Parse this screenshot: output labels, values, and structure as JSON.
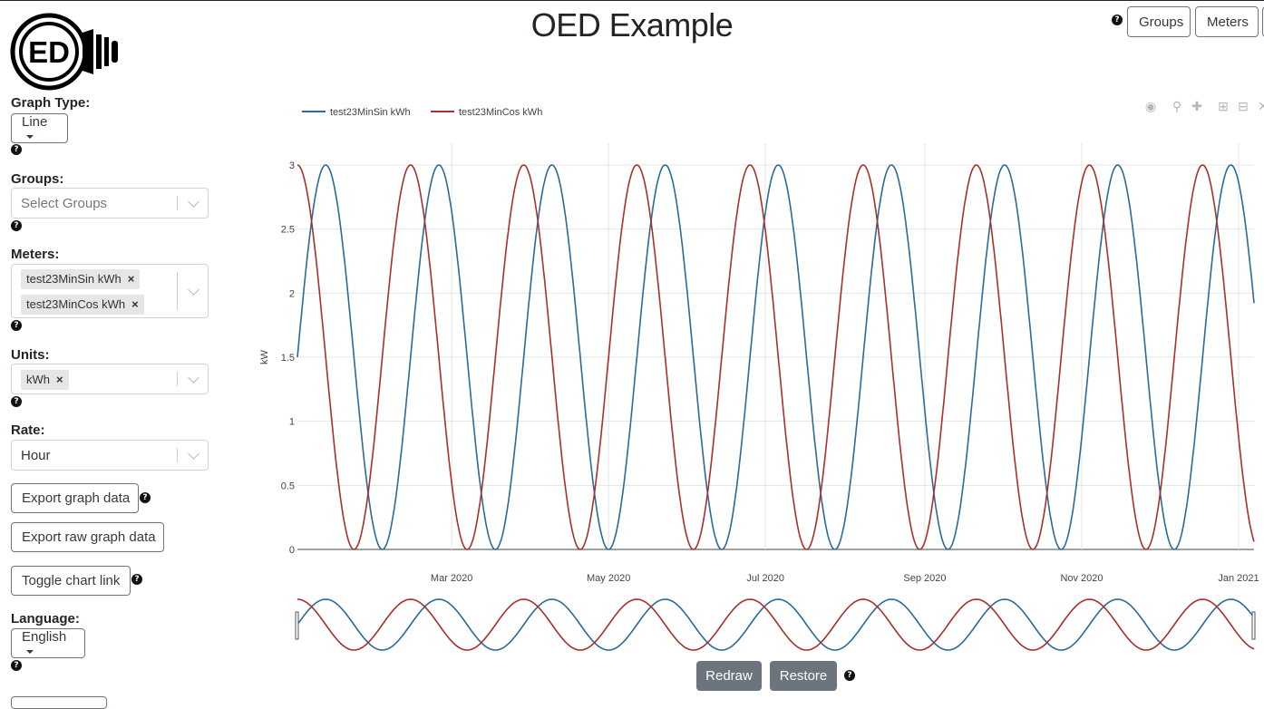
{
  "app": {
    "title": "OED Example"
  },
  "header": {
    "groups_label": "Groups",
    "meters_label": "Meters",
    "help": "?"
  },
  "sidebar": {
    "graph_type": {
      "label": "Graph Type:",
      "value": "Line"
    },
    "groups": {
      "label": "Groups:",
      "placeholder": "Select Groups"
    },
    "meters": {
      "label": "Meters:",
      "selected": [
        "test23MinSin kWh",
        "test23MinCos kWh"
      ]
    },
    "units": {
      "label": "Units:",
      "selected": [
        "kWh"
      ]
    },
    "rate": {
      "label": "Rate:",
      "value": "Hour"
    },
    "export_graph": "Export graph data",
    "export_raw": "Export raw graph data",
    "toggle_link": "Toggle chart link",
    "language": {
      "label": "Language:",
      "value": "English"
    },
    "remove_symbol": "×",
    "help": "?"
  },
  "chart_data": {
    "type": "line",
    "ylabel": "kW",
    "xlabel": "",
    "ylim": [
      0,
      3
    ],
    "yticks": [
      0,
      0.5,
      1,
      1.5,
      2,
      2.5,
      3
    ],
    "xticks": [
      "Mar 2020",
      "May 2020",
      "Jul 2020",
      "Sep 2020",
      "Nov 2020",
      "Jan 2021"
    ],
    "xrange": [
      "2020-01-01",
      "2021-01-07"
    ],
    "period_days": 44,
    "series": [
      {
        "name": "test23MinSin kWh",
        "color": "#2b6a99",
        "phase": "sine",
        "min": 0,
        "max": 3
      },
      {
        "name": "test23MinCos kWh",
        "color": "#a8302c",
        "phase": "cosine",
        "min": 0,
        "max": 3
      }
    ],
    "grid": true,
    "legend": "top-left",
    "range_slider": true
  },
  "controls": {
    "redraw": "Redraw",
    "restore": "Restore",
    "help": "?"
  },
  "modebar": [
    "camera-icon",
    "zoom-icon",
    "pan-icon",
    "zoom-in-icon",
    "zoom-out-icon",
    "autoscale-icon"
  ]
}
